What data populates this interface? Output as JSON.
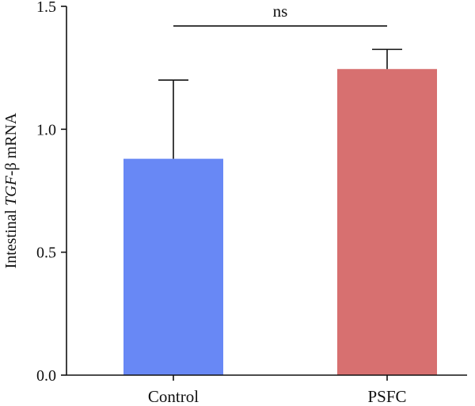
{
  "chart_data": {
    "type": "bar",
    "categories": [
      "Control",
      "PSFC"
    ],
    "values": [
      0.88,
      1.245
    ],
    "errors": [
      0.32,
      0.08
    ],
    "colors": [
      "#6888f5",
      "#d77070"
    ],
    "ylim": [
      0,
      1.5
    ],
    "yticks": [
      {
        "value": 0.0,
        "label": "0.0"
      },
      {
        "value": 0.5,
        "label": "0.5"
      },
      {
        "value": 1.0,
        "label": "1.0"
      },
      {
        "value": 1.5,
        "label": "1.5"
      }
    ],
    "ylabel": {
      "pre": "Intestinal ",
      "gene": "TGF",
      "post": "-β mRNA"
    },
    "significance": {
      "label": "ns",
      "from": "Control",
      "to": "PSFC",
      "level": 1.42
    },
    "xlabel": "",
    "grid": false,
    "legend": false
  }
}
